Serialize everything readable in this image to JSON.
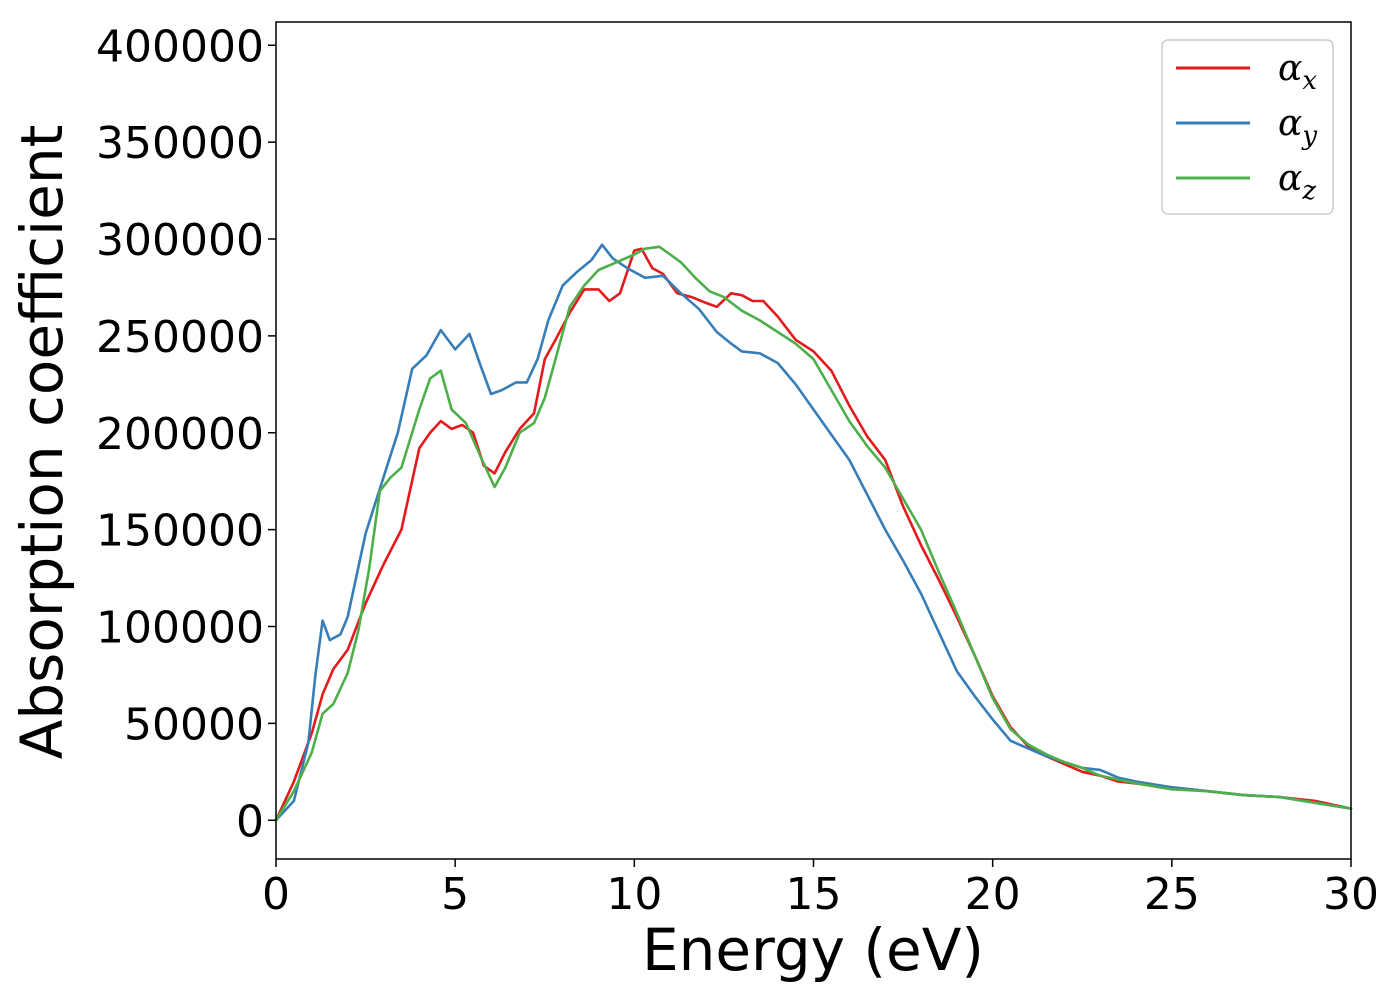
{
  "chart_data": {
    "type": "line",
    "title": "",
    "xlabel": "Energy (eV)",
    "ylabel": "Absorption coefficient",
    "xlim": [
      0,
      30
    ],
    "ylim": [
      -20000,
      412000
    ],
    "x_ticks": [
      0,
      5,
      10,
      15,
      20,
      25,
      30
    ],
    "y_ticks": [
      0,
      50000,
      100000,
      150000,
      200000,
      250000,
      300000,
      350000,
      400000
    ],
    "x_tick_labels": [
      "0",
      "5",
      "10",
      "15",
      "20",
      "25",
      "30"
    ],
    "y_tick_labels": [
      "0",
      "50000",
      "100000",
      "150000",
      "200000",
      "250000",
      "300000",
      "350000",
      "400000"
    ],
    "grid": false,
    "legend_position": "top-right",
    "series": [
      {
        "name": "αx",
        "legend_base": "α",
        "legend_sub": "x",
        "color": "#e41a1c",
        "x": [
          0,
          0.5,
          1.0,
          1.3,
          1.6,
          2.0,
          2.5,
          3.0,
          3.5,
          4.0,
          4.3,
          4.6,
          4.9,
          5.2,
          5.5,
          5.8,
          6.1,
          6.4,
          6.8,
          7.2,
          7.5,
          7.8,
          8.2,
          8.6,
          9.0,
          9.3,
          9.6,
          10.0,
          10.2,
          10.5,
          10.8,
          11.2,
          11.6,
          12.0,
          12.3,
          12.7,
          13.0,
          13.3,
          13.6,
          14.0,
          14.5,
          15.0,
          15.5,
          16.0,
          16.5,
          17.0,
          17.5,
          18.0,
          18.5,
          19.0,
          19.5,
          20.0,
          20.5,
          21.0,
          21.5,
          22.0,
          22.5,
          23.0,
          23.5,
          24.0,
          25.0,
          26.0,
          27.0,
          28.0,
          29.0,
          30.0
        ],
        "y": [
          0,
          20000,
          45000,
          65000,
          78000,
          88000,
          112000,
          132000,
          150000,
          192000,
          200000,
          206000,
          202000,
          204000,
          200000,
          183000,
          179000,
          190000,
          202000,
          210000,
          238000,
          248000,
          262000,
          274000,
          274000,
          268000,
          272000,
          294000,
          295000,
          285000,
          282000,
          272000,
          270000,
          267000,
          265000,
          272000,
          271000,
          268000,
          268000,
          260000,
          248000,
          242000,
          232000,
          214000,
          198000,
          186000,
          162000,
          142000,
          124000,
          105000,
          85000,
          64000,
          48000,
          38000,
          33000,
          29000,
          25000,
          23000,
          20000,
          19000,
          17000,
          15000,
          13000,
          12000,
          10000,
          6000
        ]
      },
      {
        "name": "αy",
        "legend_base": "α",
        "legend_sub": "y",
        "color": "#377eb8",
        "x": [
          0,
          0.5,
          0.9,
          1.1,
          1.3,
          1.5,
          1.8,
          2.0,
          2.5,
          3.0,
          3.4,
          3.8,
          4.2,
          4.6,
          5.0,
          5.4,
          5.7,
          6.0,
          6.3,
          6.7,
          7.0,
          7.3,
          7.6,
          8.0,
          8.4,
          8.8,
          9.1,
          9.4,
          9.8,
          10.3,
          10.8,
          11.3,
          11.8,
          12.3,
          12.7,
          13.0,
          13.5,
          14.0,
          14.5,
          15.0,
          15.5,
          16.0,
          16.5,
          17.0,
          17.5,
          18.0,
          18.5,
          19.0,
          19.5,
          20.0,
          20.5,
          21.0,
          21.5,
          22.0,
          22.5,
          23.0,
          23.5,
          24.0,
          25.0,
          26.0,
          27.0,
          28.0,
          29.0,
          30.0
        ],
        "y": [
          0,
          10000,
          40000,
          75000,
          103000,
          93000,
          96000,
          105000,
          148000,
          177000,
          200000,
          233000,
          240000,
          253000,
          243000,
          251000,
          235000,
          220000,
          222000,
          226000,
          226000,
          238000,
          258000,
          276000,
          283000,
          289000,
          297000,
          290000,
          285000,
          280000,
          281000,
          272000,
          264000,
          252000,
          246000,
          242000,
          241000,
          236000,
          225000,
          212000,
          199000,
          186000,
          168000,
          150000,
          134000,
          117000,
          97000,
          77000,
          64000,
          52000,
          41000,
          37000,
          33000,
          30000,
          27000,
          26000,
          22000,
          20000,
          17000,
          15000,
          13000,
          12000,
          9000,
          6000
        ],
        "_note_ignore": null
      },
      {
        "name": "αz",
        "legend_base": "α",
        "legend_sub": "z",
        "color": "#4daf4a",
        "x": [
          0,
          0.5,
          1.0,
          1.3,
          1.6,
          2.0,
          2.3,
          2.6,
          2.9,
          3.2,
          3.5,
          4.0,
          4.3,
          4.6,
          4.9,
          5.3,
          5.7,
          6.1,
          6.4,
          6.8,
          7.2,
          7.5,
          7.8,
          8.2,
          8.6,
          9.0,
          9.5,
          10.0,
          10.3,
          10.7,
          11.0,
          11.3,
          11.7,
          12.1,
          12.5,
          13.0,
          13.5,
          14.0,
          14.5,
          15.0,
          15.5,
          16.0,
          16.5,
          17.0,
          17.5,
          18.0,
          18.5,
          19.0,
          19.5,
          20.0,
          20.5,
          21.0,
          21.5,
          22.0,
          22.5,
          23.0,
          23.5,
          24.0,
          25.0,
          26.0,
          27.0,
          28.0,
          29.0,
          30.0
        ],
        "y": [
          0,
          15000,
          35000,
          55000,
          60000,
          76000,
          98000,
          130000,
          170000,
          177000,
          182000,
          212000,
          228000,
          232000,
          212000,
          205000,
          188000,
          172000,
          182000,
          200000,
          205000,
          218000,
          238000,
          265000,
          276000,
          284000,
          288000,
          292000,
          295000,
          296000,
          292000,
          288000,
          280000,
          273000,
          270000,
          263000,
          258000,
          252000,
          246000,
          238000,
          222000,
          206000,
          193000,
          182000,
          166000,
          150000,
          128000,
          107000,
          85000,
          63000,
          47000,
          39000,
          34000,
          30000,
          27000,
          23000,
          21000,
          19000,
          16000,
          15000,
          13000,
          12000,
          9000,
          6000
        ]
      }
    ]
  }
}
